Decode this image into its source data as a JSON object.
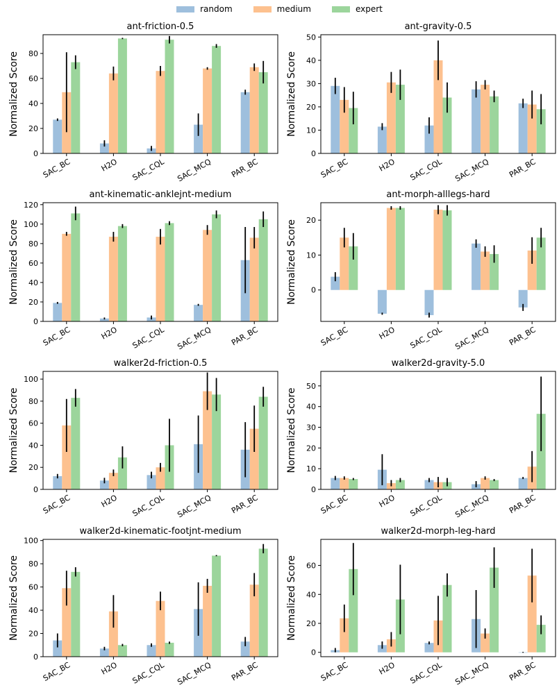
{
  "legend": [
    {
      "label": "random",
      "color": "#9ebfdd"
    },
    {
      "label": "medium",
      "color": "#fdc18f"
    },
    {
      "label": "expert",
      "color": "#9cd59c"
    }
  ],
  "chart_data": [
    {
      "type": "bar",
      "title": "ant-friction-0.5",
      "ylabel": "Normalized Score",
      "categories": [
        "SAC_BC",
        "H2O",
        "SAC_CQL",
        "SAC_MCQ",
        "PAR_BC"
      ],
      "ylim": [
        0,
        95
      ],
      "yticks": [
        0,
        20,
        40,
        60,
        80
      ],
      "series": [
        {
          "name": "random",
          "values": [
            27,
            8,
            4,
            23,
            49
          ],
          "errors": [
            1,
            2.5,
            2,
            9,
            2
          ]
        },
        {
          "name": "medium",
          "values": [
            49,
            64,
            66,
            68,
            69
          ],
          "errors": [
            32,
            5.5,
            4,
            1,
            3
          ]
        },
        {
          "name": "expert",
          "values": [
            73,
            92,
            91,
            86,
            65
          ],
          "errors": [
            5.5,
            0.5,
            3,
            1.5,
            9
          ]
        }
      ]
    },
    {
      "type": "bar",
      "title": "ant-gravity-0.5",
      "ylabel": "Normalized Score",
      "categories": [
        "SAC_BC",
        "H2O",
        "SAC_CQL",
        "SAC_MCQ",
        "PAR_BC"
      ],
      "ylim": [
        0,
        51
      ],
      "yticks": [
        0,
        10,
        20,
        30,
        40,
        50
      ],
      "series": [
        {
          "name": "random",
          "values": [
            29,
            11.5,
            12,
            27.5,
            21.5
          ],
          "errors": [
            3.5,
            1.5,
            3.5,
            3.5,
            2
          ]
        },
        {
          "name": "medium",
          "values": [
            23,
            30.5,
            40,
            29.5,
            21
          ],
          "errors": [
            5.5,
            4.5,
            8.5,
            2,
            6
          ]
        },
        {
          "name": "expert",
          "values": [
            19.5,
            29.5,
            24,
            24.5,
            19
          ],
          "errors": [
            7,
            6.5,
            6.5,
            2.5,
            6.5
          ]
        }
      ]
    },
    {
      "type": "bar",
      "title": "ant-kinematic-anklejnt-medium",
      "ylabel": "Normalized Score",
      "categories": [
        "SAC_BC",
        "H2O",
        "SAC_CQL",
        "SAC_MCQ",
        "PAR_BC"
      ],
      "ylim": [
        0,
        122
      ],
      "yticks": [
        0,
        20,
        40,
        60,
        80,
        100,
        120
      ],
      "series": [
        {
          "name": "random",
          "values": [
            19,
            3,
            4,
            17,
            63
          ],
          "errors": [
            1,
            1,
            2,
            1,
            34
          ]
        },
        {
          "name": "medium",
          "values": [
            90,
            87,
            87,
            94,
            86
          ],
          "errors": [
            2,
            5,
            8,
            5,
            11
          ]
        },
        {
          "name": "expert",
          "values": [
            111,
            98,
            101,
            110,
            105
          ],
          "errors": [
            7,
            2,
            2,
            4,
            8
          ]
        }
      ]
    },
    {
      "type": "bar",
      "title": "ant-morph-alllegs-hard",
      "ylabel": "Normalized Score",
      "categories": [
        "SAC_BC",
        "H2O",
        "SAC_CQL",
        "SAC_MCQ",
        "PAR_BC"
      ],
      "ylim": [
        -9,
        25
      ],
      "yticks": [
        0,
        10,
        20
      ],
      "series": [
        {
          "name": "random",
          "values": [
            3.8,
            -6.8,
            -7.2,
            13.3,
            -5
          ],
          "errors": [
            1.3,
            0.3,
            0.7,
            1.2,
            1
          ]
        },
        {
          "name": "medium",
          "values": [
            15,
            23.5,
            23,
            11,
            11.3
          ],
          "errors": [
            2.8,
            0.5,
            1.3,
            1.5,
            3.8
          ]
        },
        {
          "name": "expert",
          "values": [
            12.5,
            23.5,
            22.8,
            10.3,
            15
          ],
          "errors": [
            3.8,
            0.5,
            1.5,
            2.5,
            2.8
          ]
        }
      ]
    },
    {
      "type": "bar",
      "title": "walker2d-friction-0.5",
      "ylabel": "Normalized Score",
      "categories": [
        "SAC_BC",
        "H2O",
        "SAC_CQL",
        "SAC_MCQ",
        "PAR_BC"
      ],
      "ylim": [
        0,
        107
      ],
      "yticks": [
        0,
        20,
        40,
        60,
        80,
        100
      ],
      "series": [
        {
          "name": "random",
          "values": [
            12,
            8,
            13,
            41,
            36
          ],
          "errors": [
            2,
            2.5,
            3,
            26,
            25
          ]
        },
        {
          "name": "medium",
          "values": [
            58,
            15,
            20,
            89,
            55
          ],
          "errors": [
            24,
            3,
            4,
            17,
            21
          ]
        },
        {
          "name": "expert",
          "values": [
            83,
            29,
            40,
            86,
            84
          ],
          "errors": [
            8,
            10,
            24,
            15,
            9
          ]
        }
      ]
    },
    {
      "type": "bar",
      "title": "walker2d-gravity-5.0",
      "ylabel": "Normalized Score",
      "categories": [
        "SAC_BC",
        "H2O",
        "SAC_CQL",
        "SAC_MCQ",
        "PAR_BC"
      ],
      "ylim": [
        0,
        57
      ],
      "yticks": [
        0,
        10,
        20,
        30,
        40,
        50
      ],
      "series": [
        {
          "name": "random",
          "values": [
            5.5,
            9.5,
            4.5,
            2.5,
            5.5
          ],
          "errors": [
            1,
            7.5,
            1,
            1.5,
            0.5
          ]
        },
        {
          "name": "medium",
          "values": [
            5.5,
            3,
            3.5,
            5.5,
            11
          ],
          "errors": [
            0.8,
            1.5,
            2.5,
            0.8,
            7.5
          ]
        },
        {
          "name": "expert",
          "values": [
            5,
            4.5,
            3.5,
            4.5,
            36.5
          ],
          "errors": [
            0.5,
            1,
            2,
            0.5,
            18
          ]
        }
      ]
    },
    {
      "type": "bar",
      "title": "walker2d-kinematic-footjnt-medium",
      "ylabel": "Normalized Score",
      "categories": [
        "SAC_BC",
        "H2O",
        "SAC_CQL",
        "SAC_MCQ",
        "PAR_BC"
      ],
      "ylim": [
        0,
        101
      ],
      "yticks": [
        0,
        20,
        40,
        60,
        80,
        100
      ],
      "series": [
        {
          "name": "random",
          "values": [
            14,
            7,
            10,
            41,
            13
          ],
          "errors": [
            6,
            1.5,
            1.5,
            23,
            4
          ]
        },
        {
          "name": "medium",
          "values": [
            59,
            39,
            48,
            61,
            62
          ],
          "errors": [
            15,
            14,
            8,
            6,
            10
          ]
        },
        {
          "name": "expert",
          "values": [
            73,
            10,
            12,
            87,
            93
          ],
          "errors": [
            4,
            1,
            1,
            0.5,
            4
          ]
        }
      ]
    },
    {
      "type": "bar",
      "title": "walker2d-morph-leg-hard",
      "ylabel": "Normalized Score",
      "categories": [
        "SAC_BC",
        "H2O",
        "SAC_CQL",
        "SAC_MCQ",
        "PAR_BC"
      ],
      "ylim": [
        -3,
        78
      ],
      "yticks": [
        0,
        20,
        40,
        60
      ],
      "series": [
        {
          "name": "random",
          "values": [
            1.5,
            5,
            6.5,
            23,
            0
          ],
          "errors": [
            1.5,
            2.5,
            1,
            20,
            0.3
          ]
        },
        {
          "name": "medium",
          "values": [
            23.5,
            9,
            22,
            13,
            53
          ],
          "errors": [
            9.5,
            5,
            17,
            3.5,
            18.5
          ]
        },
        {
          "name": "expert",
          "values": [
            57.5,
            36.5,
            46.5,
            58.5,
            19
          ],
          "errors": [
            18,
            24,
            8,
            14,
            6.5
          ]
        }
      ]
    }
  ]
}
